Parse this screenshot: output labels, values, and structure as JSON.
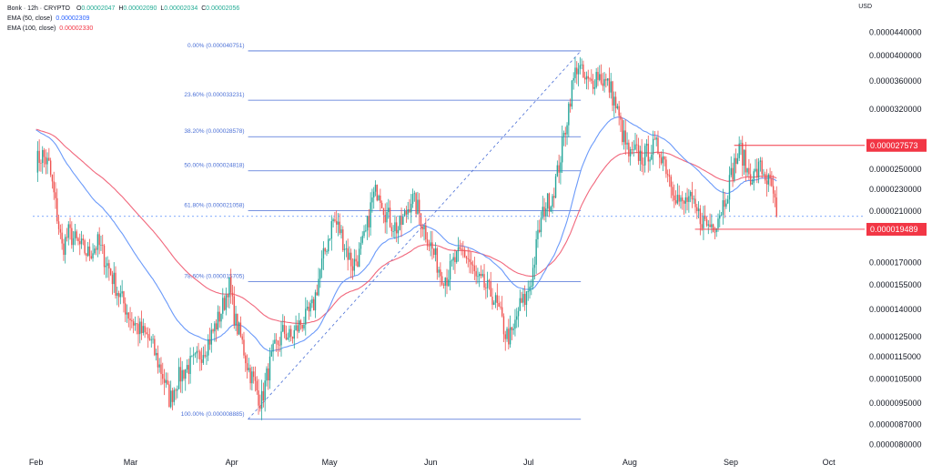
{
  "legend": {
    "symbol": "Bonk · 12h · CRYPTO",
    "open_label": "O",
    "open": "0.00002047",
    "high_label": "H",
    "high": "0.00002090",
    "low_label": "L",
    "low": "0.00002034",
    "close_label": "C",
    "close": "0.00002056",
    "ema50_label": "EMA (50, close)",
    "ema50_value": "0.00002309",
    "ema100_label": "EMA (100, close)",
    "ema100_value": "0.00002330"
  },
  "currency": "USD",
  "colors": {
    "up": "#26a69a",
    "down": "#ef5350",
    "ema50": "#5b8ff9",
    "ema100": "#f0566e",
    "fib_line": "#4a6fd6",
    "tag": "#f23645",
    "level_line": "#f23645"
  },
  "chart_data": {
    "type": "candlestick",
    "title": "",
    "scale": "log",
    "ylim": [
      7.9e-06,
      4.7e-05
    ],
    "y_ticks": [
      "0.0000440000",
      "0.0000400000",
      "0.0000360000",
      "0.0000320000",
      "0.0000250000",
      "0.0000230000",
      "0.0000210000",
      "0.0000190000",
      "0.0000170000",
      "0.0000155000",
      "0.0000140000",
      "0.0000125000",
      "0.0000115000",
      "0.0000105000",
      "0.0000095000",
      "0.0000087000",
      "0.0000080000"
    ],
    "y_tick_values": [
      4.4e-05,
      4e-05,
      3.6e-05,
      3.2e-05,
      2.5e-05,
      2.3e-05,
      2.1e-05,
      1.9e-05,
      1.7e-05,
      1.55e-05,
      1.4e-05,
      1.25e-05,
      1.15e-05,
      1.05e-05,
      9.5e-06,
      8.7e-06,
      8e-06
    ],
    "x_labels": [
      "Feb",
      "Mar",
      "Apr",
      "May",
      "Jun",
      "Jul",
      "Aug",
      "Sep",
      "Oct"
    ],
    "x_label_days": [
      1,
      30,
      61,
      91,
      122,
      152,
      183,
      214,
      244
    ],
    "xlim_days": [
      0,
      255
    ],
    "fib_levels": [
      {
        "label": "0.00% (0.000040751)",
        "value": 4.0751e-05
      },
      {
        "label": "23.60% (0.000033231)",
        "value": 3.3231e-05
      },
      {
        "label": "38.20% (0.000028578)",
        "value": 2.8578e-05
      },
      {
        "label": "50.00% (0.000024818)",
        "value": 2.4818e-05
      },
      {
        "label": "61.80% (0.000021058)",
        "value": 2.1058e-05
      },
      {
        "label": "78.60% (0.000015705)",
        "value": 1.5705e-05
      },
      {
        "label": "100.00% (0.000008885)",
        "value": 8.885e-06
      }
    ],
    "fib_x_range_days": [
      66,
      168
    ],
    "trend_line": {
      "from": [
        66,
        8.885e-06
      ],
      "to": [
        168,
        4.0751e-05
      ]
    },
    "price_tags": [
      {
        "label": "0.000027573",
        "value": 2.7573e-05,
        "line_from_day": 215
      },
      {
        "label": "0.000019489",
        "value": 1.9489e-05,
        "line_from_day": 203
      }
    ],
    "current_price": 2.056e-05,
    "anchors": [
      [
        1,
        2.58e-05
      ],
      [
        3,
        2.65e-05
      ],
      [
        5,
        2.53e-05
      ],
      [
        7,
        2.15e-05
      ],
      [
        9,
        1.8e-05
      ],
      [
        11,
        1.92e-05
      ],
      [
        14,
        1.83e-05
      ],
      [
        17,
        1.76e-05
      ],
      [
        20,
        1.84e-05
      ],
      [
        23,
        1.68e-05
      ],
      [
        26,
        1.51e-05
      ],
      [
        30,
        1.35e-05
      ],
      [
        33,
        1.28e-05
      ],
      [
        36,
        1.23e-05
      ],
      [
        38,
        1.14e-05
      ],
      [
        40,
        1.06e-05
      ],
      [
        42,
        9.6e-06
      ],
      [
        44,
        1.04e-05
      ],
      [
        47,
        1.1e-05
      ],
      [
        50,
        1.13e-05
      ],
      [
        54,
        1.23e-05
      ],
      [
        57,
        1.35e-05
      ],
      [
        59,
        1.46e-05
      ],
      [
        60,
        1.57e-05
      ],
      [
        62,
        1.34e-05
      ],
      [
        64,
        1.23e-05
      ],
      [
        66,
        1.1e-05
      ],
      [
        68,
        1.03e-05
      ],
      [
        70,
        9.5e-06
      ],
      [
        72,
        1.08e-05
      ],
      [
        74,
        1.18e-05
      ],
      [
        77,
        1.28e-05
      ],
      [
        79,
        1.24e-05
      ],
      [
        82,
        1.32e-05
      ],
      [
        84,
        1.35e-05
      ],
      [
        86,
        1.42e-05
      ],
      [
        88,
        1.63e-05
      ],
      [
        90,
        1.82e-05
      ],
      [
        92,
        2.03e-05
      ],
      [
        94,
        1.95e-05
      ],
      [
        96,
        1.8e-05
      ],
      [
        98,
        1.68e-05
      ],
      [
        100,
        1.75e-05
      ],
      [
        102,
        1.9e-05
      ],
      [
        104,
        2.2e-05
      ],
      [
        106,
        2.32e-05
      ],
      [
        108,
        2.1e-05
      ],
      [
        110,
        2e-05
      ],
      [
        112,
        1.95e-05
      ],
      [
        114,
        2.05e-05
      ],
      [
        116,
        2.22e-05
      ],
      [
        118,
        2.12e-05
      ],
      [
        120,
        1.96e-05
      ],
      [
        122,
        1.82e-05
      ],
      [
        125,
        1.63e-05
      ],
      [
        127,
        1.6e-05
      ],
      [
        129,
        1.7e-05
      ],
      [
        132,
        1.78e-05
      ],
      [
        134,
        1.7e-05
      ],
      [
        136,
        1.58e-05
      ],
      [
        138,
        1.55e-05
      ],
      [
        141,
        1.48e-05
      ],
      [
        143,
        1.38e-05
      ],
      [
        145,
        1.26e-05
      ],
      [
        147,
        1.25e-05
      ],
      [
        149,
        1.41e-05
      ],
      [
        151,
        1.46e-05
      ],
      [
        153,
        1.6e-05
      ],
      [
        155,
        1.92e-05
      ],
      [
        157,
        2.15e-05
      ],
      [
        159,
        2.22e-05
      ],
      [
        161,
        2.48e-05
      ],
      [
        163,
        2.9e-05
      ],
      [
        165,
        3.45e-05
      ],
      [
        167,
        3.88e-05
      ],
      [
        169,
        3.6e-05
      ],
      [
        171,
        3.55e-05
      ],
      [
        173,
        3.72e-05
      ],
      [
        175,
        3.6e-05
      ],
      [
        177,
        3.5e-05
      ],
      [
        179,
        3.2e-05
      ],
      [
        181,
        2.85e-05
      ],
      [
        183,
        2.62e-05
      ],
      [
        185,
        2.68e-05
      ],
      [
        187,
        2.62e-05
      ],
      [
        189,
        2.7e-05
      ],
      [
        191,
        2.74e-05
      ],
      [
        193,
        2.66e-05
      ],
      [
        195,
        2.44e-05
      ],
      [
        197,
        2.26e-05
      ],
      [
        199,
        2.14e-05
      ],
      [
        201,
        2.22e-05
      ],
      [
        203,
        2.1e-05
      ],
      [
        205,
        2.04e-05
      ],
      [
        207,
        1.98e-05
      ],
      [
        209,
        2e-05
      ],
      [
        211,
        2.12e-05
      ],
      [
        213,
        2.3e-05
      ],
      [
        215,
        2.55e-05
      ],
      [
        217,
        2.72e-05
      ],
      [
        219,
        2.48e-05
      ],
      [
        221,
        2.42e-05
      ],
      [
        223,
        2.52e-05
      ],
      [
        225,
        2.4e-05
      ],
      [
        227,
        2.26e-05
      ],
      [
        228,
        2.05e-05
      ]
    ]
  }
}
